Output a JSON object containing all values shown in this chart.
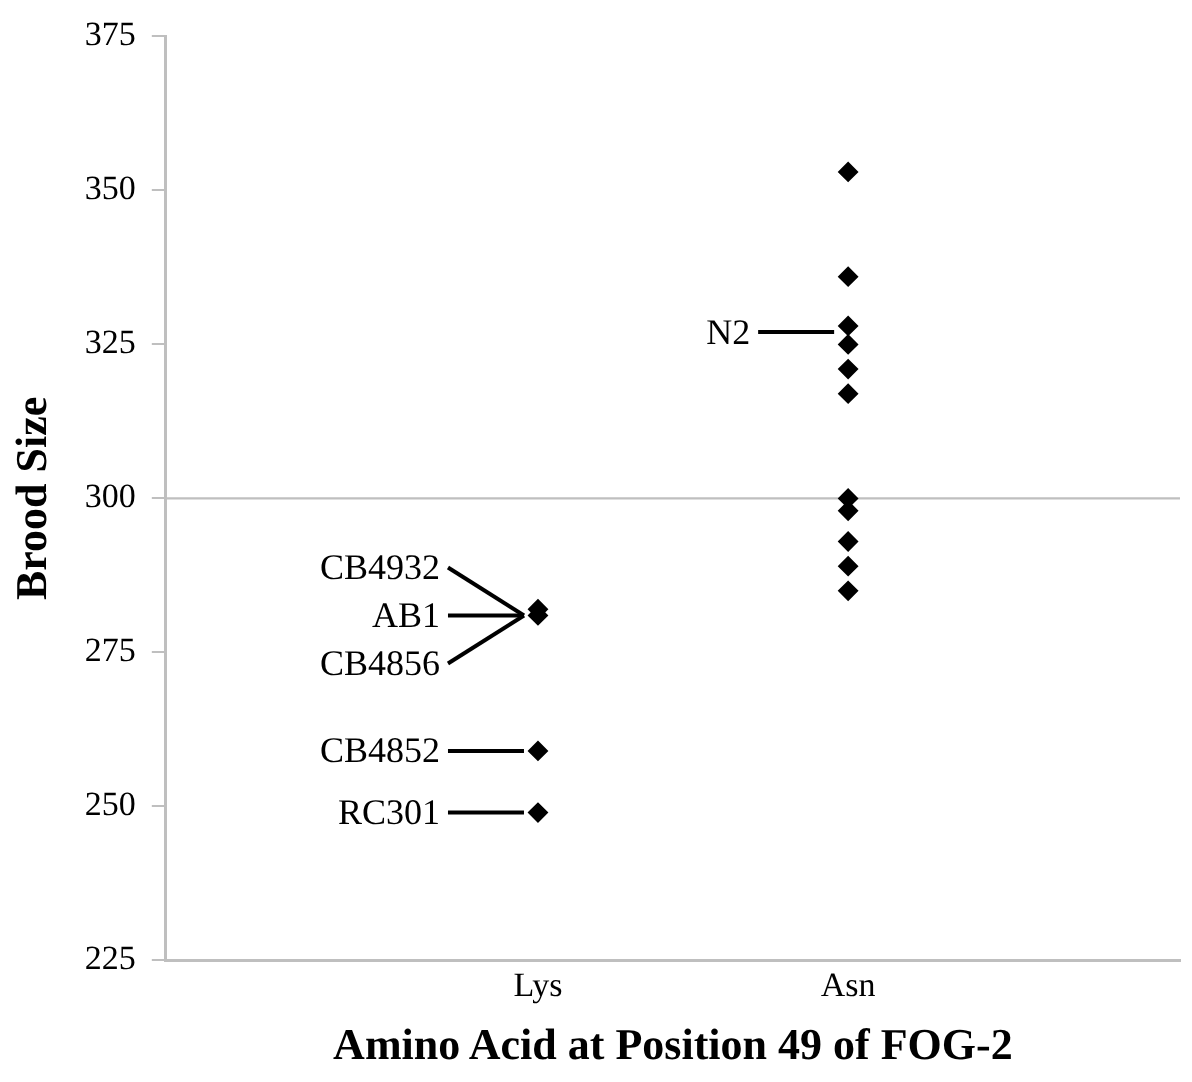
{
  "chart_data": {
    "type": "scatter",
    "xlabel": "Amino Acid at Position 49 of FOG-2",
    "ylabel": "Brood Size",
    "categories": [
      "Lys",
      "Asn"
    ],
    "series": [
      {
        "color": "#000000",
        "x": [
          "Lys",
          "Lys",
          "Lys",
          "Lys",
          "Lys"
        ],
        "values": [
          282,
          281,
          null,
          259,
          249
        ]
      },
      {
        "color": "#000000",
        "x": [
          "Asn",
          "Asn",
          "Asn",
          "Asn",
          "Asn",
          "Asn",
          "Asn",
          "Asn",
          "Asn",
          "Asn",
          "Asn"
        ],
        "values": [
          353,
          336,
          328,
          325,
          321,
          317,
          300,
          298,
          293,
          289,
          285
        ]
      }
    ],
    "ylim": [
      225,
      375
    ],
    "yticks": [
      225,
      250,
      275,
      300,
      325,
      350,
      375
    ],
    "ref_lines": [
      {
        "axis": "y",
        "value": 300,
        "color": "#bfbfbf"
      }
    ],
    "annotations": [
      {
        "text": "CB4932",
        "x": "Lys",
        "y": 281
      },
      {
        "text": "AB1",
        "x": "Lys",
        "y": 281
      },
      {
        "text": "CB4856",
        "x": "Lys",
        "y": 281
      },
      {
        "text": "CB4852",
        "x": "Lys",
        "y": 259
      },
      {
        "text": "RC301",
        "x": "Lys",
        "y": 249
      },
      {
        "text": "N2",
        "x": "Asn",
        "y": 327
      }
    ],
    "grid": false,
    "legend": false,
    "marker": "diamond"
  }
}
